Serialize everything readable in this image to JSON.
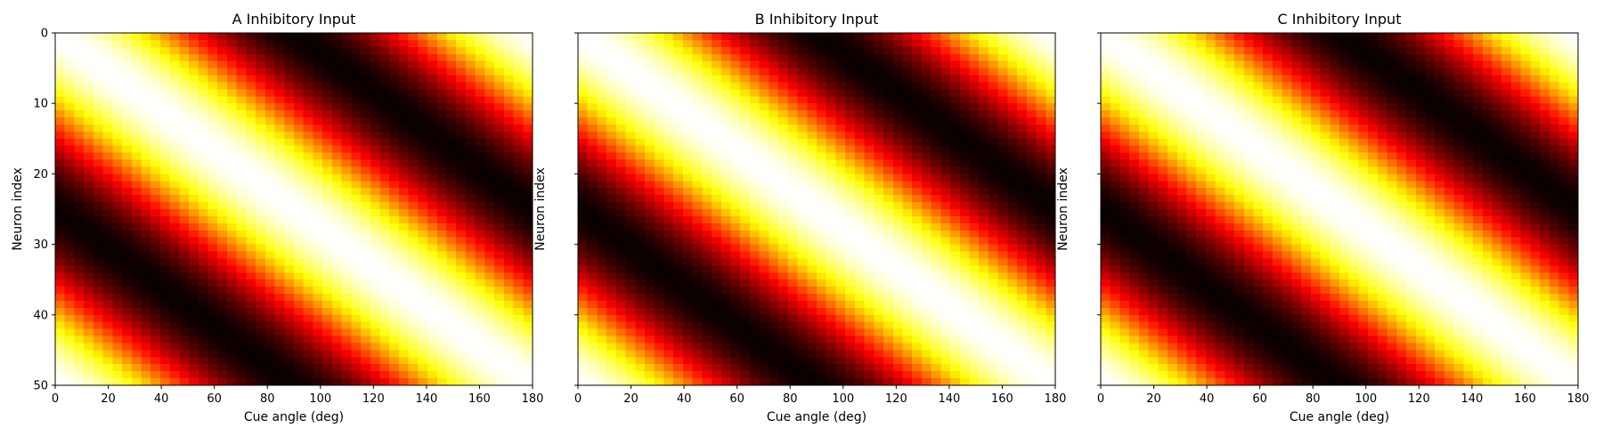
{
  "chart_data": [
    {
      "type": "heatmap",
      "title": "A Inhibitory Input",
      "xlabel": "Cue angle (deg)",
      "ylabel": "Neuron index",
      "xlim": [
        0,
        180
      ],
      "ylim": [
        50,
        0
      ],
      "xticks": [
        "0",
        "20",
        "40",
        "60",
        "80",
        "100",
        "120",
        "140",
        "160",
        "180"
      ],
      "yticks": [
        "0",
        "10",
        "20",
        "30",
        "40",
        "50"
      ],
      "colormap": "hot",
      "grid_size": [
        50,
        50
      ],
      "values_formula": "0.5 + 0.5*cos(2*pi/180*(angle - 3.6*neuron))",
      "value_range": [
        0,
        1
      ],
      "grid": false,
      "legend": "none"
    },
    {
      "type": "heatmap",
      "title": "B Inhibitory Input",
      "xlabel": "Cue angle (deg)",
      "ylabel": "Neuron index",
      "xlim": [
        0,
        180
      ],
      "ylim": [
        50,
        0
      ],
      "xticks": [
        "0",
        "20",
        "40",
        "60",
        "80",
        "100",
        "120",
        "140",
        "160",
        "180"
      ],
      "yticks": [],
      "colormap": "hot",
      "grid_size": [
        50,
        50
      ],
      "values_formula": "0.5 + 0.5*cos(2*pi/180*(angle - 3.6*neuron))",
      "value_range": [
        0,
        1
      ],
      "grid": false,
      "legend": "none"
    },
    {
      "type": "heatmap",
      "title": "C Inhibitory Input",
      "xlabel": "Cue angle (deg)",
      "ylabel": "Neuron index",
      "xlim": [
        0,
        180
      ],
      "ylim": [
        50,
        0
      ],
      "xticks": [
        "0",
        "20",
        "40",
        "60",
        "80",
        "100",
        "120",
        "140",
        "160",
        "180"
      ],
      "yticks": [],
      "colormap": "hot",
      "grid_size": [
        50,
        50
      ],
      "values_formula": "0.5 + 0.5*cos(2*pi/180*(angle - 3.6*neuron))",
      "value_range": [
        0,
        1
      ],
      "grid": false,
      "legend": "none"
    }
  ]
}
